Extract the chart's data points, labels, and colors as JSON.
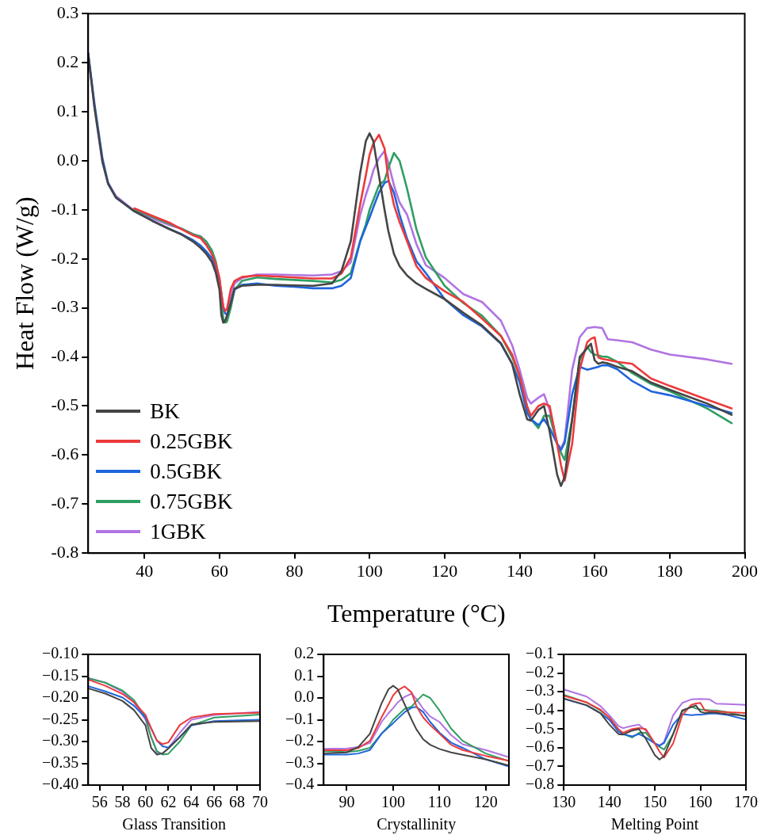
{
  "chart_data": [
    {
      "type": "line",
      "xlabel": "Temperature (°C)",
      "ylabel": "Heat Flow (W/g)",
      "legend": "bottom left",
      "x": [
        25,
        26.7,
        28.8,
        30.3,
        32.4,
        37.3,
        42,
        46.6,
        50,
        53,
        55,
        56.5,
        58,
        59,
        60,
        60.5,
        61,
        61.5,
        62,
        63,
        64,
        66,
        70,
        75,
        80,
        85,
        90,
        92.5,
        95,
        97.5,
        99,
        100,
        101,
        102.5,
        104,
        105,
        106.5,
        108,
        110,
        112.5,
        115,
        120,
        125,
        130,
        135,
        138,
        140,
        142,
        143,
        145,
        146.5,
        148,
        150,
        151,
        152,
        154,
        156,
        158,
        159,
        160,
        161,
        162,
        163.5,
        166,
        170,
        175,
        180,
        190,
        196.5
      ],
      "xlim": [
        25,
        200
      ],
      "xticks": [
        40,
        60,
        80,
        100,
        120,
        140,
        160,
        180,
        200
      ],
      "ylim": [
        -0.8,
        0.3
      ],
      "yticks": [
        {
          "value": -0.8,
          "label": "-0.8"
        },
        {
          "value": -0.7,
          "label": "-0.7"
        },
        {
          "value": -0.6,
          "label": "-0.6"
        },
        {
          "value": -0.5,
          "label": "-0.5"
        },
        {
          "value": -0.4,
          "label": "-0.4"
        },
        {
          "value": -0.3,
          "label": "-0.3"
        },
        {
          "value": -0.2,
          "label": "-0.2"
        },
        {
          "value": -0.1,
          "label": "-0.1"
        },
        {
          "value": 0,
          "label": "0.0"
        },
        {
          "value": 0.1,
          "label": "0.1"
        },
        {
          "value": 0.2,
          "label": "0.2"
        },
        {
          "value": 0.3,
          "label": "0.3"
        }
      ],
      "series": [
        {
          "name": "BK",
          "color": "#454545",
          "values": [
            0.217,
            0.108,
            -0.002,
            -0.047,
            -0.075,
            -0.103,
            -0.122,
            -0.139,
            -0.151,
            -0.165,
            -0.178,
            -0.19,
            -0.207,
            -0.228,
            -0.263,
            -0.315,
            -0.33,
            -0.327,
            -0.316,
            -0.29,
            -0.261,
            -0.255,
            -0.253,
            -0.253,
            -0.254,
            -0.255,
            -0.25,
            -0.225,
            -0.164,
            -0.025,
            0.04,
            0.056,
            0.04,
            -0.03,
            -0.1,
            -0.143,
            -0.19,
            -0.215,
            -0.234,
            -0.25,
            -0.261,
            -0.282,
            -0.31,
            -0.336,
            -0.372,
            -0.414,
            -0.476,
            -0.527,
            -0.53,
            -0.508,
            -0.5,
            -0.552,
            -0.64,
            -0.663,
            -0.645,
            -0.527,
            -0.4,
            -0.382,
            -0.373,
            -0.407,
            -0.414,
            -0.411,
            -0.413,
            -0.42,
            -0.429,
            -0.452,
            -0.467,
            -0.495,
            -0.518
          ]
        },
        {
          "name": "0.25GBK",
          "color": "#ec3a3c",
          "values": [
            null,
            null,
            null,
            null,
            null,
            -0.097,
            -0.112,
            -0.126,
            -0.14,
            -0.152,
            -0.158,
            -0.172,
            -0.191,
            -0.21,
            -0.239,
            -0.27,
            -0.298,
            -0.306,
            -0.302,
            -0.262,
            -0.245,
            -0.237,
            -0.234,
            -0.236,
            -0.238,
            -0.24,
            -0.24,
            -0.23,
            -0.197,
            -0.089,
            -0.03,
            0.012,
            0.035,
            0.053,
            0.025,
            -0.036,
            -0.09,
            -0.125,
            -0.164,
            -0.215,
            -0.239,
            -0.266,
            -0.288,
            -0.322,
            -0.357,
            -0.395,
            -0.439,
            -0.501,
            -0.52,
            -0.5,
            -0.495,
            -0.5,
            -0.577,
            -0.62,
            -0.652,
            -0.577,
            -0.426,
            -0.37,
            -0.363,
            -0.36,
            -0.401,
            -0.404,
            -0.406,
            -0.41,
            -0.414,
            -0.444,
            -0.459,
            -0.487,
            -0.505
          ]
        },
        {
          "name": "0.5GBK",
          "color": "#1f65dc",
          "values": [
            0.22,
            0.115,
            0.005,
            -0.045,
            -0.075,
            -0.103,
            -0.122,
            -0.139,
            -0.15,
            -0.162,
            -0.173,
            -0.185,
            -0.199,
            -0.218,
            -0.245,
            -0.27,
            -0.298,
            -0.311,
            -0.314,
            -0.29,
            -0.263,
            -0.253,
            -0.25,
            -0.255,
            -0.257,
            -0.26,
            -0.26,
            -0.255,
            -0.239,
            -0.164,
            -0.135,
            -0.116,
            -0.095,
            -0.065,
            -0.045,
            -0.041,
            -0.065,
            -0.11,
            -0.159,
            -0.205,
            -0.229,
            -0.282,
            -0.315,
            -0.338,
            -0.373,
            -0.414,
            -0.451,
            -0.514,
            -0.527,
            -0.539,
            -0.527,
            -0.545,
            -0.577,
            -0.59,
            -0.575,
            -0.476,
            -0.42,
            -0.426,
            -0.424,
            -0.422,
            -0.42,
            -0.417,
            -0.417,
            -0.425,
            -0.449,
            -0.47,
            -0.478,
            -0.5,
            -0.514
          ]
        },
        {
          "name": "0.75GBK",
          "color": "#2f9e62",
          "values": [
            null,
            null,
            null,
            null,
            null,
            -0.099,
            -0.114,
            -0.128,
            -0.139,
            -0.15,
            -0.155,
            -0.165,
            -0.183,
            -0.205,
            -0.245,
            -0.29,
            -0.322,
            -0.33,
            -0.328,
            -0.3,
            -0.263,
            -0.245,
            -0.238,
            -0.241,
            -0.243,
            -0.245,
            -0.248,
            -0.243,
            -0.229,
            -0.164,
            -0.13,
            -0.1,
            -0.08,
            -0.05,
            -0.04,
            -0.015,
            0.016,
            0.0,
            -0.057,
            -0.14,
            -0.197,
            -0.255,
            -0.29,
            -0.316,
            -0.357,
            -0.4,
            -0.439,
            -0.501,
            -0.527,
            -0.545,
            -0.52,
            -0.52,
            -0.577,
            -0.595,
            -0.61,
            -0.527,
            -0.407,
            -0.379,
            -0.39,
            -0.395,
            -0.397,
            -0.399,
            -0.4,
            -0.41,
            -0.433,
            -0.455,
            -0.47,
            -0.505,
            -0.535
          ]
        },
        {
          "name": "1GBK",
          "color": "#b074e2",
          "values": [
            0.217,
            0.108,
            -0.002,
            -0.045,
            -0.072,
            -0.102,
            -0.117,
            -0.131,
            -0.139,
            -0.15,
            -0.154,
            -0.165,
            -0.186,
            -0.21,
            -0.25,
            -0.29,
            -0.325,
            -0.328,
            -0.315,
            -0.28,
            -0.25,
            -0.239,
            -0.232,
            -0.232,
            -0.233,
            -0.234,
            -0.232,
            -0.225,
            -0.207,
            -0.11,
            -0.07,
            -0.047,
            -0.02,
            0.005,
            0.02,
            -0.004,
            -0.05,
            -0.085,
            -0.11,
            -0.17,
            -0.213,
            -0.239,
            -0.272,
            -0.288,
            -0.326,
            -0.376,
            -0.426,
            -0.483,
            -0.495,
            -0.483,
            -0.476,
            -0.508,
            -0.577,
            -0.587,
            -0.57,
            -0.426,
            -0.36,
            -0.341,
            -0.34,
            -0.339,
            -0.34,
            -0.341,
            -0.364,
            -0.366,
            -0.37,
            -0.385,
            -0.395,
            -0.405,
            -0.414
          ]
        }
      ]
    },
    {
      "type": "line",
      "xlabel": "Glass Transition",
      "x": [
        55,
        56.5,
        58,
        59,
        60,
        60.5,
        61,
        61.5,
        62,
        63,
        64,
        66,
        70
      ],
      "xlim": [
        55,
        70
      ],
      "xticks": [
        56,
        58,
        60,
        62,
        64,
        66,
        68,
        70
      ],
      "ylim": [
        -0.4,
        -0.1
      ],
      "yticks": [
        {
          "value": -0.4,
          "label": "−0.40"
        },
        {
          "value": -0.35,
          "label": "−0.35"
        },
        {
          "value": -0.3,
          "label": "−0.30"
        },
        {
          "value": -0.25,
          "label": "−0.25"
        },
        {
          "value": -0.2,
          "label": "−0.20"
        },
        {
          "value": -0.15,
          "label": "−0.15"
        },
        {
          "value": -0.1,
          "label": "−0.10"
        }
      ],
      "series": [
        {
          "color": "#454545",
          "values": [
            -0.178,
            -0.19,
            -0.207,
            -0.228,
            -0.263,
            -0.315,
            -0.33,
            -0.327,
            -0.316,
            -0.29,
            -0.261,
            -0.255,
            -0.253
          ]
        },
        {
          "color": "#ec3a3c",
          "values": [
            -0.158,
            -0.172,
            -0.191,
            -0.21,
            -0.239,
            -0.27,
            -0.298,
            -0.306,
            -0.302,
            -0.262,
            -0.245,
            -0.237,
            -0.234
          ]
        },
        {
          "color": "#1f65dc",
          "values": [
            -0.173,
            -0.185,
            -0.199,
            -0.218,
            -0.245,
            -0.27,
            -0.298,
            -0.311,
            -0.314,
            -0.29,
            -0.263,
            -0.253,
            -0.25
          ]
        },
        {
          "color": "#2f9e62",
          "values": [
            -0.155,
            -0.165,
            -0.183,
            -0.205,
            -0.245,
            -0.29,
            -0.322,
            -0.33,
            -0.328,
            -0.3,
            -0.263,
            -0.245,
            -0.238
          ]
        },
        {
          "color": "#b074e2",
          "values": [
            -0.154,
            -0.165,
            -0.186,
            -0.21,
            -0.25,
            -0.29,
            -0.325,
            -0.328,
            -0.315,
            -0.28,
            -0.25,
            -0.239,
            -0.232
          ]
        }
      ]
    },
    {
      "type": "line",
      "xlabel": "Crystallinity",
      "x": [
        85,
        90,
        92.5,
        95,
        97.5,
        99,
        100,
        101,
        102.5,
        104,
        105,
        106.5,
        108,
        110,
        112.5,
        115,
        120,
        125
      ],
      "xlim": [
        85,
        125
      ],
      "xticks": [
        90,
        100,
        110,
        120
      ],
      "ylim": [
        -0.4,
        0.2
      ],
      "yticks": [
        {
          "value": -0.4,
          "label": "−0.4"
        },
        {
          "value": -0.3,
          "label": "−0.3"
        },
        {
          "value": -0.2,
          "label": "−0.2"
        },
        {
          "value": -0.1,
          "label": "−0.1"
        },
        {
          "value": 0,
          "label": "0.0"
        },
        {
          "value": 0.1,
          "label": "0.1"
        },
        {
          "value": 0.2,
          "label": "0.2"
        }
      ],
      "series": [
        {
          "color": "#454545",
          "values": [
            -0.255,
            -0.25,
            -0.225,
            -0.164,
            -0.025,
            0.04,
            0.056,
            0.04,
            -0.03,
            -0.1,
            -0.143,
            -0.19,
            -0.215,
            -0.234,
            -0.25,
            -0.261,
            -0.282,
            -0.31
          ]
        },
        {
          "color": "#ec3a3c",
          "values": [
            -0.24,
            -0.24,
            -0.23,
            -0.197,
            -0.089,
            -0.03,
            0.012,
            0.035,
            0.053,
            0.025,
            -0.036,
            -0.09,
            -0.125,
            -0.164,
            -0.215,
            -0.239,
            -0.266,
            -0.288
          ]
        },
        {
          "color": "#1f65dc",
          "values": [
            -0.26,
            -0.26,
            -0.255,
            -0.239,
            -0.164,
            -0.135,
            -0.116,
            -0.095,
            -0.065,
            -0.045,
            -0.041,
            -0.065,
            -0.11,
            -0.159,
            -0.205,
            -0.229,
            -0.282,
            -0.315
          ]
        },
        {
          "color": "#2f9e62",
          "values": [
            -0.245,
            -0.248,
            -0.243,
            -0.229,
            -0.164,
            -0.13,
            -0.1,
            -0.08,
            -0.05,
            -0.04,
            -0.015,
            0.016,
            0.0,
            -0.057,
            -0.14,
            -0.197,
            -0.255,
            -0.29
          ]
        },
        {
          "color": "#b074e2",
          "values": [
            -0.234,
            -0.232,
            -0.225,
            -0.207,
            -0.11,
            -0.07,
            -0.047,
            -0.02,
            0.005,
            0.02,
            -0.004,
            -0.05,
            -0.085,
            -0.11,
            -0.17,
            -0.213,
            -0.239,
            -0.272
          ]
        }
      ]
    },
    {
      "type": "line",
      "xlabel": "Melting Point",
      "x": [
        130,
        135,
        138,
        140,
        142,
        143,
        145,
        146.5,
        148,
        150,
        151,
        152,
        154,
        156,
        158,
        159,
        160,
        161,
        162,
        163.5,
        166,
        170
      ],
      "xlim": [
        130,
        170
      ],
      "xticks": [
        130,
        140,
        150,
        160,
        170
      ],
      "ylim": [
        -0.8,
        -0.1
      ],
      "yticks": [
        {
          "value": -0.8,
          "label": "−0.8"
        },
        {
          "value": -0.7,
          "label": "−0.7"
        },
        {
          "value": -0.6,
          "label": "−0.6"
        },
        {
          "value": -0.5,
          "label": "−0.5"
        },
        {
          "value": -0.4,
          "label": "−0.4"
        },
        {
          "value": -0.3,
          "label": "−0.3"
        },
        {
          "value": -0.2,
          "label": "−0.2"
        },
        {
          "value": -0.1,
          "label": "−0.1"
        }
      ],
      "series": [
        {
          "color": "#454545",
          "values": [
            -0.336,
            -0.372,
            -0.414,
            -0.476,
            -0.527,
            -0.53,
            -0.508,
            -0.5,
            -0.552,
            -0.64,
            -0.663,
            -0.645,
            -0.527,
            -0.4,
            -0.382,
            -0.373,
            -0.407,
            -0.414,
            -0.411,
            -0.413,
            -0.42,
            -0.429
          ]
        },
        {
          "color": "#ec3a3c",
          "values": [
            -0.322,
            -0.357,
            -0.395,
            -0.439,
            -0.501,
            -0.52,
            -0.5,
            -0.495,
            -0.5,
            -0.577,
            -0.62,
            -0.652,
            -0.577,
            -0.426,
            -0.37,
            -0.363,
            -0.36,
            -0.401,
            -0.404,
            -0.406,
            -0.41,
            -0.414
          ]
        },
        {
          "color": "#1f65dc",
          "values": [
            -0.338,
            -0.373,
            -0.414,
            -0.451,
            -0.514,
            -0.527,
            -0.539,
            -0.527,
            -0.545,
            -0.577,
            -0.59,
            -0.575,
            -0.476,
            -0.42,
            -0.426,
            -0.424,
            -0.422,
            -0.42,
            -0.417,
            -0.417,
            -0.425,
            -0.449
          ]
        },
        {
          "color": "#2f9e62",
          "values": [
            -0.316,
            -0.357,
            -0.4,
            -0.439,
            -0.501,
            -0.527,
            -0.545,
            -0.52,
            -0.52,
            -0.577,
            -0.595,
            -0.61,
            -0.527,
            -0.407,
            -0.379,
            -0.39,
            -0.395,
            -0.397,
            -0.399,
            -0.4,
            -0.41,
            -0.433
          ]
        },
        {
          "color": "#b074e2",
          "values": [
            -0.288,
            -0.326,
            -0.376,
            -0.426,
            -0.483,
            -0.495,
            -0.483,
            -0.476,
            -0.508,
            -0.577,
            -0.587,
            -0.57,
            -0.426,
            -0.36,
            -0.341,
            -0.34,
            -0.339,
            -0.34,
            -0.341,
            -0.364,
            -0.366,
            -0.37
          ]
        }
      ]
    }
  ]
}
